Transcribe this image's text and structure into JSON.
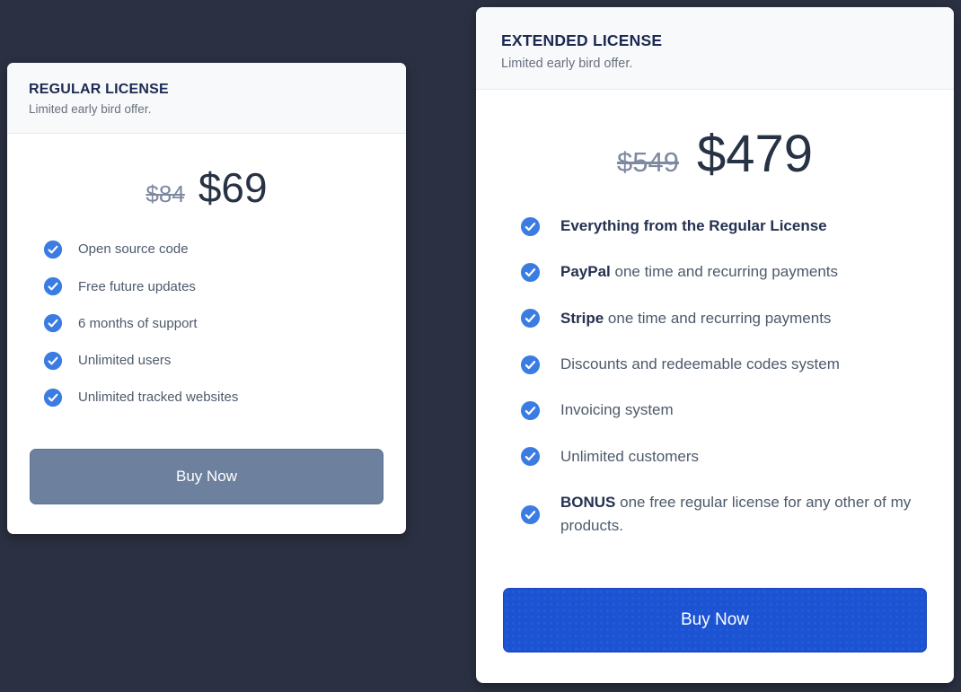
{
  "colors": {
    "page_background": "#2b3142",
    "card_background": "#ffffff",
    "header_background": "#f8f9fa",
    "title_navy": "#1c2a52",
    "check_blue": "#3b7ce2",
    "regular_button": "#6d819f",
    "extended_button": "#1b53d3"
  },
  "cards": [
    {
      "title": "REGULAR LICENSE",
      "subtitle": "Limited early bird offer.",
      "old_price": "$84",
      "price": "$69",
      "feature_icon": "check-circle-icon",
      "features": [
        {
          "bold": "",
          "rest": "Open source code"
        },
        {
          "bold": "",
          "rest": "Free future updates"
        },
        {
          "bold": "",
          "rest": "6 months of support"
        },
        {
          "bold": "",
          "rest": "Unlimited users"
        },
        {
          "bold": "",
          "rest": "Unlimited tracked websites"
        }
      ],
      "button_label": "Buy Now"
    },
    {
      "title": "EXTENDED LICENSE",
      "subtitle": "Limited early bird offer.",
      "old_price": "$549",
      "price": "$479",
      "feature_icon": "check-circle-icon",
      "features": [
        {
          "bold": "Everything from the Regular License",
          "rest": ""
        },
        {
          "bold": "PayPal",
          "rest": " one time and recurring payments"
        },
        {
          "bold": "Stripe",
          "rest": " one time and recurring payments"
        },
        {
          "bold": "",
          "rest": "Discounts and redeemable codes system"
        },
        {
          "bold": "",
          "rest": "Invoicing system"
        },
        {
          "bold": "",
          "rest": "Unlimited customers"
        },
        {
          "bold": "BONUS",
          "rest": " one free regular license for any other of my products."
        }
      ],
      "button_label": "Buy Now"
    }
  ]
}
